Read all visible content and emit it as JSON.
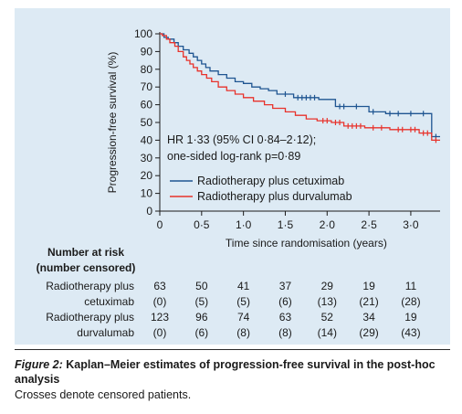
{
  "chart_data": {
    "type": "line",
    "step": true,
    "ylabel": "Progression-free survival (%)",
    "xlabel": "Time since randomisation (years)",
    "xlim": [
      0,
      3.35
    ],
    "ylim": [
      0,
      100
    ],
    "x_ticks": [
      0,
      0.5,
      1.0,
      1.5,
      2.0,
      2.5,
      3.0
    ],
    "x_tick_labels": [
      "0",
      "0·5",
      "1·0",
      "1·5",
      "2·0",
      "2·5",
      "3·0"
    ],
    "y_ticks": [
      0,
      10,
      20,
      30,
      40,
      50,
      60,
      70,
      80,
      90,
      100
    ],
    "y_tick_labels": [
      "0",
      "10",
      "20",
      "30",
      "40",
      "50",
      "60",
      "70",
      "80",
      "90",
      "100"
    ],
    "annotation": [
      "HR 1·33 (95% CI 0·84–2·12);",
      "one-sided log-rank p=0·89"
    ],
    "legend_placement": "center-right",
    "series": [
      {
        "name": "Radiotherapy plus cetuximab",
        "color": "#1f5591",
        "points": [
          [
            0,
            100
          ],
          [
            0.05,
            100
          ],
          [
            0.05,
            98
          ],
          [
            0.1,
            98
          ],
          [
            0.1,
            97
          ],
          [
            0.17,
            97
          ],
          [
            0.17,
            95
          ],
          [
            0.22,
            95
          ],
          [
            0.22,
            93
          ],
          [
            0.28,
            93
          ],
          [
            0.28,
            91
          ],
          [
            0.35,
            91
          ],
          [
            0.35,
            89
          ],
          [
            0.4,
            89
          ],
          [
            0.4,
            87
          ],
          [
            0.45,
            87
          ],
          [
            0.45,
            85
          ],
          [
            0.5,
            85
          ],
          [
            0.5,
            83
          ],
          [
            0.55,
            83
          ],
          [
            0.55,
            81
          ],
          [
            0.6,
            81
          ],
          [
            0.6,
            79
          ],
          [
            0.7,
            79
          ],
          [
            0.7,
            77
          ],
          [
            0.8,
            77
          ],
          [
            0.8,
            75
          ],
          [
            0.9,
            75
          ],
          [
            0.9,
            73
          ],
          [
            1.0,
            73
          ],
          [
            1.0,
            72
          ],
          [
            1.1,
            72
          ],
          [
            1.1,
            70
          ],
          [
            1.2,
            70
          ],
          [
            1.2,
            69
          ],
          [
            1.3,
            69
          ],
          [
            1.3,
            68
          ],
          [
            1.4,
            68
          ],
          [
            1.4,
            66
          ],
          [
            1.6,
            66
          ],
          [
            1.6,
            64
          ],
          [
            1.9,
            64
          ],
          [
            1.9,
            63
          ],
          [
            2.1,
            63
          ],
          [
            2.1,
            59
          ],
          [
            2.5,
            59
          ],
          [
            2.5,
            56
          ],
          [
            2.7,
            56
          ],
          [
            2.7,
            55
          ],
          [
            3.25,
            55
          ],
          [
            3.25,
            42
          ],
          [
            3.35,
            42
          ]
        ],
        "censored": [
          [
            1.5,
            66
          ],
          [
            1.65,
            64
          ],
          [
            1.7,
            64
          ],
          [
            1.75,
            64
          ],
          [
            1.8,
            64
          ],
          [
            1.85,
            64
          ],
          [
            2.15,
            59
          ],
          [
            2.2,
            59
          ],
          [
            2.35,
            59
          ],
          [
            2.55,
            56
          ],
          [
            2.75,
            55
          ],
          [
            2.85,
            55
          ],
          [
            3.0,
            55
          ],
          [
            3.15,
            55
          ],
          [
            3.3,
            42
          ]
        ]
      },
      {
        "name": "Radiotherapy plus durvalumab",
        "color": "#e8322b",
        "points": [
          [
            0,
            100
          ],
          [
            0.03,
            100
          ],
          [
            0.03,
            99
          ],
          [
            0.08,
            99
          ],
          [
            0.08,
            97
          ],
          [
            0.12,
            97
          ],
          [
            0.12,
            95
          ],
          [
            0.18,
            95
          ],
          [
            0.18,
            93
          ],
          [
            0.22,
            93
          ],
          [
            0.22,
            90
          ],
          [
            0.28,
            90
          ],
          [
            0.28,
            87
          ],
          [
            0.32,
            87
          ],
          [
            0.32,
            85
          ],
          [
            0.36,
            85
          ],
          [
            0.36,
            83
          ],
          [
            0.4,
            83
          ],
          [
            0.4,
            81
          ],
          [
            0.45,
            81
          ],
          [
            0.45,
            79
          ],
          [
            0.5,
            79
          ],
          [
            0.5,
            77
          ],
          [
            0.56,
            77
          ],
          [
            0.56,
            75
          ],
          [
            0.62,
            75
          ],
          [
            0.62,
            73
          ],
          [
            0.7,
            73
          ],
          [
            0.7,
            70
          ],
          [
            0.8,
            70
          ],
          [
            0.8,
            68
          ],
          [
            0.9,
            68
          ],
          [
            0.9,
            66
          ],
          [
            1.0,
            66
          ],
          [
            1.0,
            64
          ],
          [
            1.12,
            64
          ],
          [
            1.12,
            62
          ],
          [
            1.25,
            62
          ],
          [
            1.25,
            60
          ],
          [
            1.35,
            60
          ],
          [
            1.35,
            58
          ],
          [
            1.5,
            58
          ],
          [
            1.5,
            56
          ],
          [
            1.62,
            56
          ],
          [
            1.62,
            54
          ],
          [
            1.75,
            54
          ],
          [
            1.75,
            52
          ],
          [
            1.88,
            52
          ],
          [
            1.88,
            51
          ],
          [
            2.05,
            51
          ],
          [
            2.05,
            50
          ],
          [
            2.2,
            50
          ],
          [
            2.2,
            48
          ],
          [
            2.45,
            48
          ],
          [
            2.45,
            47
          ],
          [
            2.75,
            47
          ],
          [
            2.75,
            46
          ],
          [
            3.1,
            46
          ],
          [
            3.1,
            44
          ],
          [
            3.25,
            44
          ],
          [
            3.25,
            40
          ],
          [
            3.35,
            40
          ]
        ],
        "censored": [
          [
            1.95,
            51
          ],
          [
            2.0,
            51
          ],
          [
            2.1,
            50
          ],
          [
            2.15,
            50
          ],
          [
            2.25,
            48
          ],
          [
            2.3,
            48
          ],
          [
            2.35,
            48
          ],
          [
            2.4,
            48
          ],
          [
            2.55,
            47
          ],
          [
            2.65,
            47
          ],
          [
            2.85,
            46
          ],
          [
            2.9,
            46
          ],
          [
            3.0,
            46
          ],
          [
            3.05,
            46
          ],
          [
            3.15,
            44
          ],
          [
            3.2,
            44
          ],
          [
            3.3,
            40
          ]
        ]
      }
    ]
  },
  "risk_table": {
    "title_line1": "Number at risk",
    "title_line2": "(number censored)",
    "x_positions": [
      0,
      0.5,
      1.0,
      1.5,
      2.0,
      2.5,
      3.0
    ],
    "rows": [
      {
        "label_line1": "Radiotherapy plus",
        "label_line2": "cetuximab",
        "at_risk": [
          "63",
          "50",
          "41",
          "37",
          "29",
          "19",
          "11"
        ],
        "censored": [
          "(0)",
          "(5)",
          "(5)",
          "(6)",
          "(13)",
          "(21)",
          "(28)"
        ]
      },
      {
        "label_line1": "Radiotherapy plus",
        "label_line2": "durvalumab",
        "at_risk": [
          "123",
          "96",
          "74",
          "63",
          "52",
          "34",
          "19"
        ],
        "censored": [
          "(0)",
          "(6)",
          "(8)",
          "(8)",
          "(14)",
          "(29)",
          "(43)"
        ]
      }
    ]
  },
  "caption": {
    "label": "Figure 2:",
    "title": " Kaplan–Meier estimates of progression-free survival in the post-hoc analysis",
    "note": "Crosses denote censored patients."
  }
}
